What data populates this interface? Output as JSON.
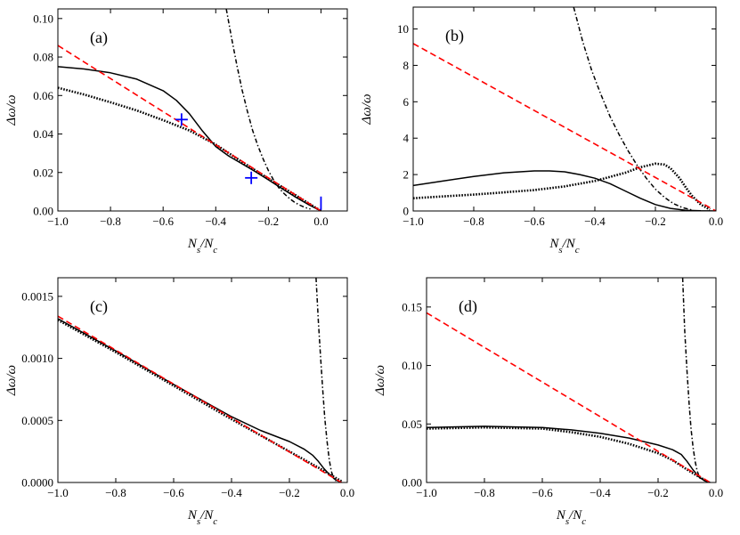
{
  "chart_data": [
    {
      "type": "line",
      "panel_label": "(a)",
      "xlabel": "N_s/N_c",
      "ylabel": "Δω/ω",
      "xlim": [
        -1.0,
        0.1
      ],
      "ylim": [
        0,
        0.105
      ],
      "xticks": [
        -1.0,
        -0.8,
        -0.6,
        -0.4,
        -0.2,
        0.0
      ],
      "xtick_labels": [
        "−1.0",
        "−0.8",
        "−0.6",
        "−0.4",
        "−0.2",
        "0.0"
      ],
      "yticks": [
        0,
        0.02,
        0.04,
        0.06,
        0.08,
        0.1
      ],
      "ytick_labels": [
        "0.00",
        "0.02",
        "0.04",
        "0.06",
        "0.08",
        "0.10"
      ],
      "series": [
        {
          "name": "solid",
          "style": "solid",
          "color": "#000000",
          "x": [
            -1.0,
            -0.9,
            -0.8,
            -0.7,
            -0.6,
            -0.55,
            -0.5,
            -0.45,
            -0.4,
            -0.37,
            -0.35,
            -0.3,
            -0.25,
            -0.2,
            -0.15,
            -0.1,
            -0.05,
            0.0
          ],
          "y": [
            0.075,
            0.0738,
            0.0718,
            0.0685,
            0.0625,
            0.0575,
            0.0505,
            0.0415,
            0.0335,
            0.0305,
            0.0285,
            0.0245,
            0.0205,
            0.0162,
            0.0118,
            0.0075,
            0.0035,
            0.0
          ]
        },
        {
          "name": "dotted",
          "style": "dotted",
          "color": "#000000",
          "x": [
            -1.0,
            -0.9,
            -0.8,
            -0.7,
            -0.6,
            -0.5,
            -0.4,
            -0.3,
            -0.2,
            -0.1,
            -0.05,
            0.0
          ],
          "y": [
            0.064,
            0.0605,
            0.0565,
            0.0522,
            0.0472,
            0.0418,
            0.0345,
            0.0255,
            0.0168,
            0.0085,
            0.0042,
            0.0
          ]
        },
        {
          "name": "dash-dot",
          "style": "dashdot",
          "color": "#000000",
          "x": [
            -0.36,
            -0.34,
            -0.32,
            -0.3,
            -0.28,
            -0.26,
            -0.24,
            -0.22,
            -0.2,
            -0.18,
            -0.16,
            -0.14,
            -0.12,
            -0.1,
            -0.08,
            -0.06,
            -0.04
          ],
          "y": [
            0.105,
            0.09,
            0.076,
            0.063,
            0.052,
            0.042,
            0.034,
            0.027,
            0.021,
            0.016,
            0.012,
            0.009,
            0.0065,
            0.0045,
            0.003,
            0.0018,
            0.001
          ]
        },
        {
          "name": "dashed",
          "style": "dashed",
          "color": "#ff0000",
          "x": [
            -1.0,
            0.0
          ],
          "y": [
            0.086,
            0.0
          ]
        }
      ],
      "markers": [
        {
          "type": "plus",
          "color": "#0000ff",
          "x": -0.53,
          "y": 0.0475
        },
        {
          "type": "plus",
          "color": "#0000ff",
          "x": -0.265,
          "y": 0.0172
        },
        {
          "type": "vline",
          "color": "#0000ff",
          "x": 0.0,
          "y0": 0.0005,
          "y1": 0.0075
        }
      ]
    },
    {
      "type": "line",
      "panel_label": "(b)",
      "xlabel": "N_s/N_c",
      "ylabel": "Δω/ω",
      "xlim": [
        -1.0,
        0.0
      ],
      "ylim": [
        0,
        11.2
      ],
      "xticks": [
        -1.0,
        -0.8,
        -0.6,
        -0.4,
        -0.2,
        0.0
      ],
      "xtick_labels": [
        "−1.0",
        "−0.8",
        "−0.6",
        "−0.4",
        "−0.2",
        "0.0"
      ],
      "yticks": [
        0,
        2,
        4,
        6,
        8,
        10
      ],
      "ytick_labels": [
        "0",
        "2",
        "4",
        "6",
        "8",
        "10"
      ],
      "series": [
        {
          "name": "solid",
          "style": "solid",
          "color": "#000000",
          "x": [
            -1.0,
            -0.9,
            -0.8,
            -0.7,
            -0.6,
            -0.55,
            -0.5,
            -0.45,
            -0.4,
            -0.35,
            -0.3,
            -0.25,
            -0.2,
            -0.15,
            -0.1,
            -0.05,
            0.0
          ],
          "y": [
            1.4,
            1.65,
            1.9,
            2.1,
            2.2,
            2.2,
            2.15,
            2.0,
            1.8,
            1.5,
            1.1,
            0.7,
            0.35,
            0.14,
            0.04,
            0.01,
            0.0
          ]
        },
        {
          "name": "dotted",
          "style": "dotted",
          "color": "#000000",
          "x": [
            -1.0,
            -0.9,
            -0.8,
            -0.7,
            -0.6,
            -0.5,
            -0.4,
            -0.3,
            -0.25,
            -0.2,
            -0.17,
            -0.15,
            -0.12,
            -0.1,
            -0.08,
            -0.05,
            -0.02
          ],
          "y": [
            0.7,
            0.8,
            0.9,
            1.02,
            1.15,
            1.35,
            1.65,
            2.1,
            2.4,
            2.6,
            2.55,
            2.35,
            1.8,
            1.3,
            0.85,
            0.35,
            0.08
          ]
        },
        {
          "name": "dash-dot",
          "style": "dashdot",
          "color": "#000000",
          "x": [
            -0.47,
            -0.44,
            -0.41,
            -0.38,
            -0.35,
            -0.32,
            -0.29,
            -0.26,
            -0.23,
            -0.2,
            -0.17,
            -0.14,
            -0.11,
            -0.08
          ],
          "y": [
            11.2,
            9.3,
            7.7,
            6.4,
            5.2,
            4.2,
            3.3,
            2.5,
            1.8,
            1.2,
            0.75,
            0.4,
            0.18,
            0.06
          ]
        },
        {
          "name": "dashed",
          "style": "dashed",
          "color": "#ff0000",
          "x": [
            -1.0,
            0.0
          ],
          "y": [
            9.2,
            0.0
          ]
        }
      ],
      "markers": []
    },
    {
      "type": "line",
      "panel_label": "(c)",
      "xlabel": "N_s/N_c",
      "ylabel": "Δω/ω",
      "xlim": [
        -1.0,
        0.0
      ],
      "ylim": [
        0,
        0.00165
      ],
      "xticks": [
        -1.0,
        -0.8,
        -0.6,
        -0.4,
        -0.2,
        0.0
      ],
      "xtick_labels": [
        "−1.0",
        "−0.8",
        "−0.6",
        "−0.4",
        "−0.2",
        "0.0"
      ],
      "yticks": [
        0,
        0.0005,
        0.001,
        0.0015
      ],
      "ytick_labels": [
        "0.0000",
        "0.0005",
        "0.0010",
        "0.0015"
      ],
      "series": [
        {
          "name": "solid",
          "style": "solid",
          "color": "#000000",
          "x": [
            -1.0,
            -0.8,
            -0.6,
            -0.4,
            -0.3,
            -0.2,
            -0.15,
            -0.12,
            -0.1,
            -0.08,
            -0.06,
            -0.04,
            -0.02
          ],
          "y": [
            0.00132,
            0.00106,
            0.00079,
            0.00053,
            0.00042,
            0.00033,
            0.00027,
            0.00022,
            0.00017,
            0.00011,
            6e-05,
            2e-05,
            0.0
          ]
        },
        {
          "name": "dotted",
          "style": "dotted",
          "color": "#000000",
          "x": [
            -1.0,
            -0.8,
            -0.6,
            -0.4,
            -0.3,
            -0.2,
            -0.1,
            -0.05,
            -0.02
          ],
          "y": [
            0.00131,
            0.00105,
            0.00078,
            0.00051,
            0.00038,
            0.00025,
            0.00012,
            5e-05,
            1e-05
          ]
        },
        {
          "name": "dash-dot",
          "style": "dashdot",
          "color": "#000000",
          "x": [
            -0.108,
            -0.1,
            -0.092,
            -0.085,
            -0.078,
            -0.07,
            -0.062,
            -0.055,
            -0.048,
            -0.04
          ],
          "y": [
            0.00165,
            0.0013,
            0.001,
            0.00075,
            0.00052,
            0.00033,
            0.00018,
            9e-05,
            4e-05,
            1e-05
          ]
        },
        {
          "name": "dashed",
          "style": "dashed",
          "color": "#ff0000",
          "x": [
            -1.0,
            -0.02
          ],
          "y": [
            0.00134,
            0.0
          ]
        }
      ],
      "markers": []
    },
    {
      "type": "line",
      "panel_label": "(d)",
      "xlabel": "N_s/N_c",
      "ylabel": "Δω/ω",
      "xlim": [
        -1.0,
        0.0
      ],
      "ylim": [
        0,
        0.175
      ],
      "xticks": [
        -1.0,
        -0.8,
        -0.6,
        -0.4,
        -0.2,
        0.0
      ],
      "xtick_labels": [
        "−1.0",
        "−0.8",
        "−0.6",
        "−0.4",
        "−0.2",
        "0.0"
      ],
      "yticks": [
        0,
        0.05,
        0.1,
        0.15
      ],
      "ytick_labels": [
        "0.00",
        "0.05",
        "0.10",
        "0.15"
      ],
      "series": [
        {
          "name": "solid",
          "style": "solid",
          "color": "#000000",
          "x": [
            -1.0,
            -0.8,
            -0.6,
            -0.5,
            -0.4,
            -0.3,
            -0.2,
            -0.15,
            -0.12,
            -0.1,
            -0.08,
            -0.06,
            -0.04,
            -0.02
          ],
          "y": [
            0.047,
            0.048,
            0.047,
            0.045,
            0.042,
            0.038,
            0.032,
            0.028,
            0.024,
            0.018,
            0.011,
            0.005,
            0.0015,
            0.0
          ]
        },
        {
          "name": "dotted",
          "style": "dotted",
          "color": "#000000",
          "x": [
            -1.0,
            -0.8,
            -0.6,
            -0.5,
            -0.4,
            -0.3,
            -0.2,
            -0.15,
            -0.1,
            -0.06,
            -0.03
          ],
          "y": [
            0.046,
            0.047,
            0.046,
            0.043,
            0.039,
            0.033,
            0.025,
            0.019,
            0.011,
            0.005,
            0.001
          ]
        },
        {
          "name": "dash-dot",
          "style": "dashdot",
          "color": "#000000",
          "x": [
            -0.115,
            -0.108,
            -0.1,
            -0.093,
            -0.086,
            -0.079,
            -0.072,
            -0.065,
            -0.058,
            -0.05
          ],
          "y": [
            0.175,
            0.13,
            0.095,
            0.068,
            0.046,
            0.03,
            0.018,
            0.01,
            0.005,
            0.002
          ]
        },
        {
          "name": "dashed",
          "style": "dashed",
          "color": "#ff0000",
          "x": [
            -1.0,
            -0.02
          ],
          "y": [
            0.145,
            0.0
          ]
        }
      ],
      "markers": []
    }
  ]
}
